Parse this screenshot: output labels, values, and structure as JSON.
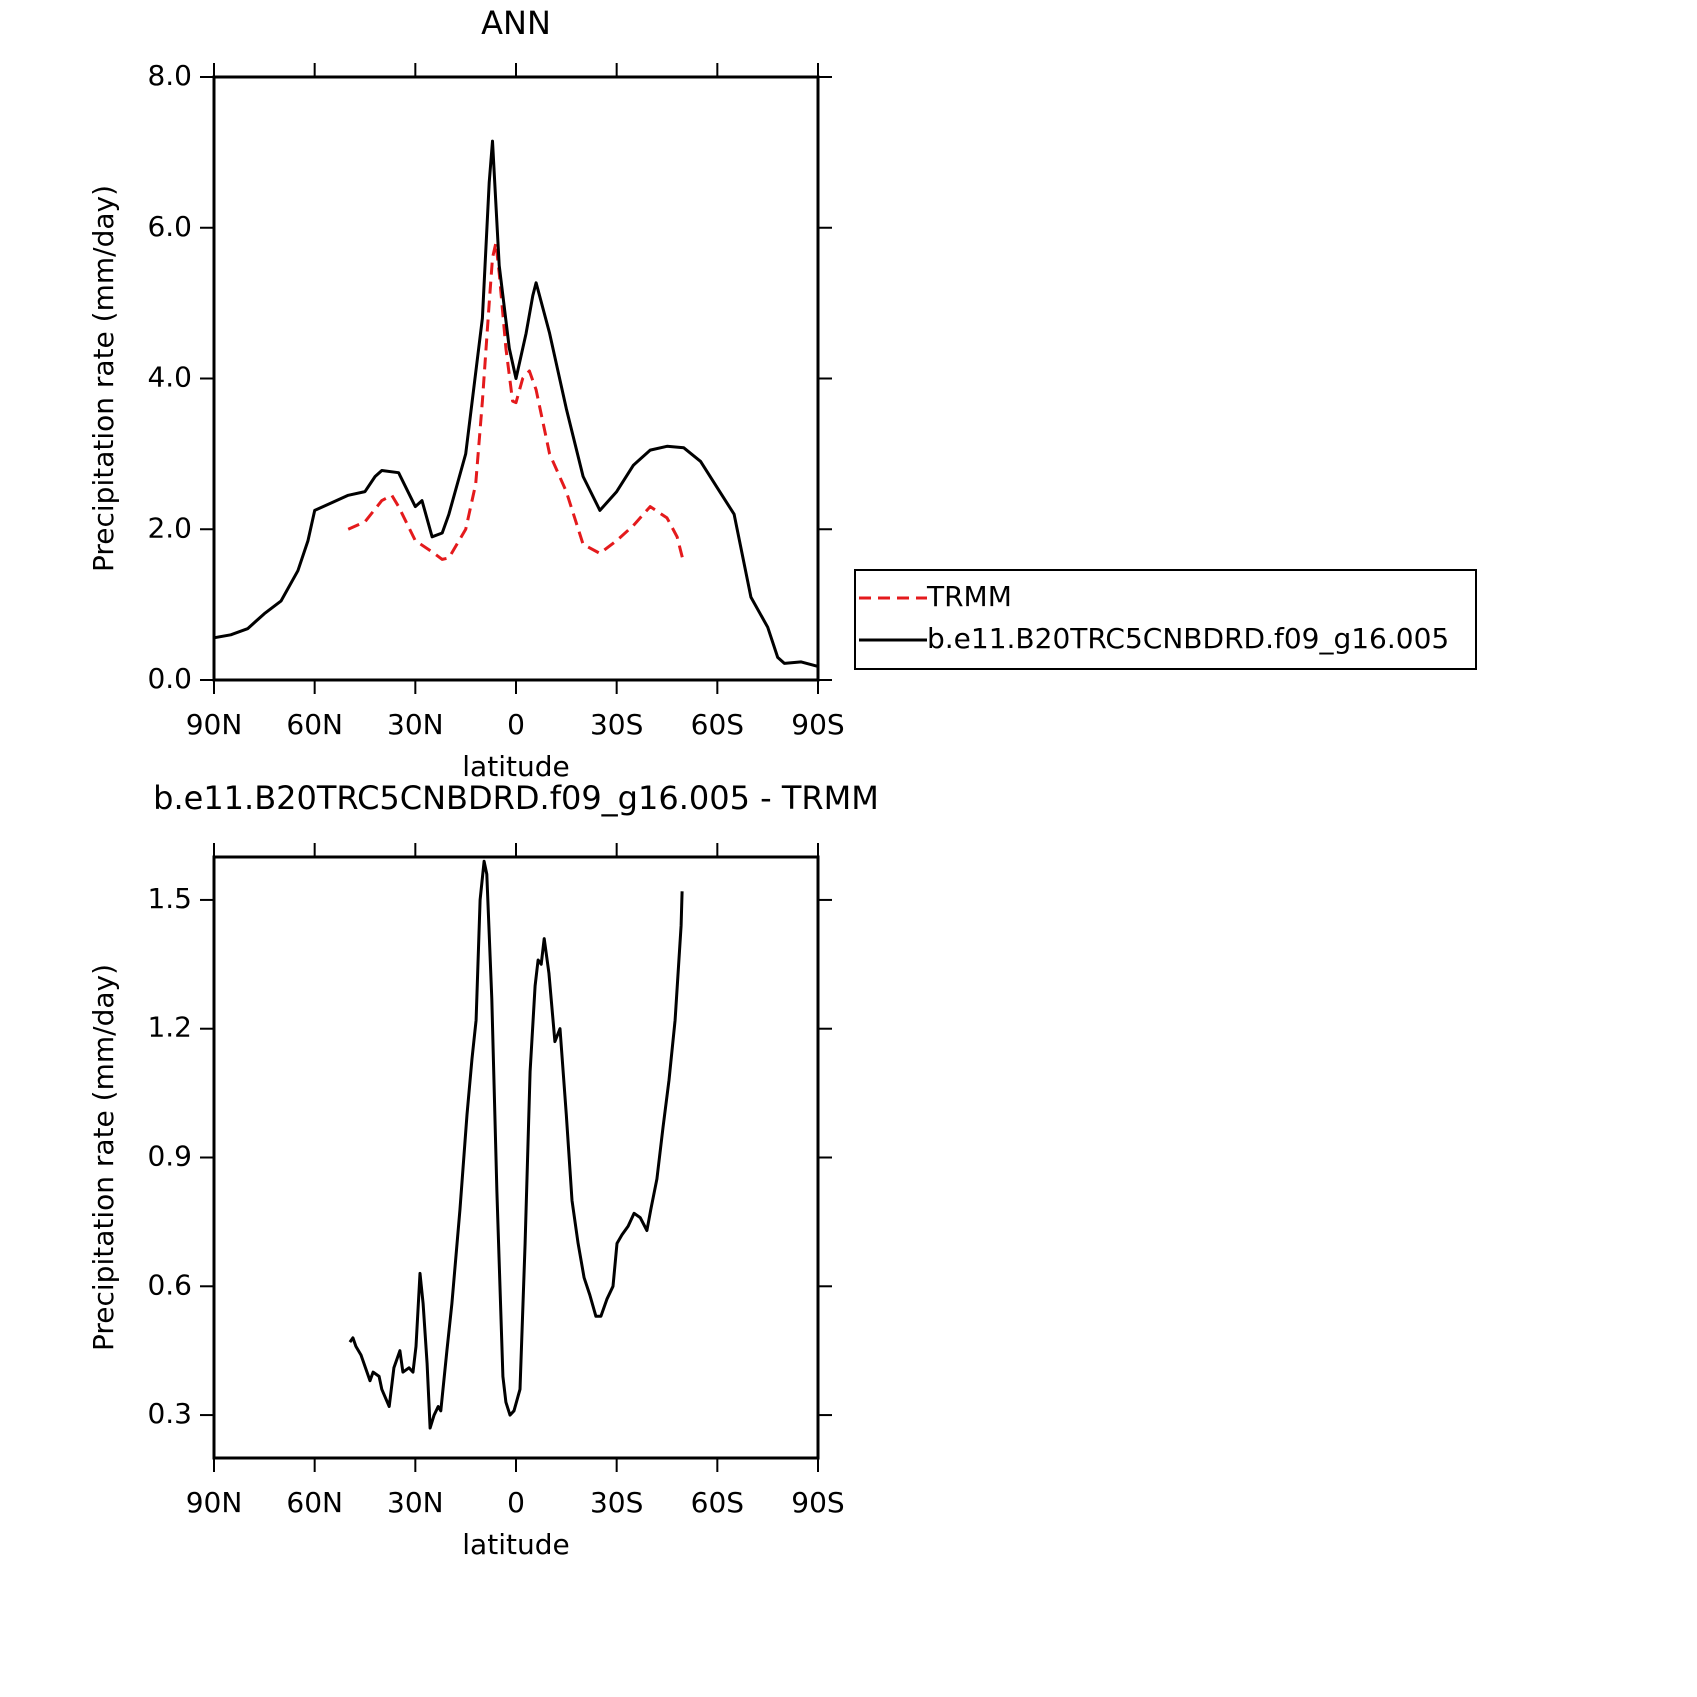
{
  "chart_data": [
    {
      "type": "line",
      "title": "ANN",
      "xlabel": "latitude",
      "ylabel": "Precipitation rate (mm/day)",
      "xlim": [
        90,
        -90
      ],
      "ylim": [
        0,
        8
      ],
      "xticks": [
        {
          "value": 90,
          "label": "90N"
        },
        {
          "value": 60,
          "label": "60N"
        },
        {
          "value": 30,
          "label": "30N"
        },
        0,
        {
          "value": -30,
          "label": "30S"
        },
        {
          "value": -60,
          "label": "60S"
        },
        {
          "value": -90,
          "label": "90S"
        }
      ],
      "yticks": [
        {
          "value": 0,
          "label": "0.0"
        },
        {
          "value": 2,
          "label": "2.0"
        },
        {
          "value": 4,
          "label": "4.0"
        },
        {
          "value": 6,
          "label": "6.0"
        },
        {
          "value": 8,
          "label": "8.0"
        }
      ],
      "legend": "right",
      "series": [
        {
          "name": "TRMM",
          "color": "#e41a1c",
          "dash": true,
          "x": [
            50,
            45,
            40,
            37,
            35,
            30,
            25,
            22,
            20,
            15,
            12,
            10,
            8,
            7,
            6,
            5,
            3,
            1,
            0,
            -2,
            -4,
            -6,
            -10,
            -15,
            -20,
            -25,
            -30,
            -35,
            -40,
            -45,
            -48,
            -50
          ],
          "values": [
            2.0,
            2.1,
            2.38,
            2.45,
            2.3,
            1.85,
            1.7,
            1.6,
            1.62,
            2.0,
            2.6,
            3.7,
            5.0,
            5.6,
            5.8,
            5.4,
            4.4,
            3.7,
            3.68,
            4.0,
            4.1,
            3.85,
            3.0,
            2.5,
            1.8,
            1.68,
            1.85,
            2.05,
            2.3,
            2.15,
            1.9,
            1.55
          ]
        },
        {
          "name": "b.e11.B20TRC5CNBDRD.f09_g16.005",
          "color": "#000000",
          "dash": false,
          "x": [
            90,
            85,
            80,
            75,
            70,
            65,
            62,
            60,
            55,
            50,
            45,
            42,
            40,
            35,
            30,
            28,
            25,
            22,
            20,
            15,
            10,
            8,
            7,
            5,
            2,
            0,
            -3,
            -5,
            -6,
            -10,
            -15,
            -20,
            -25,
            -30,
            -35,
            -40,
            -45,
            -50,
            -55,
            -60,
            -65,
            -70,
            -75,
            -78,
            -80,
            -85,
            -90
          ],
          "values": [
            0.56,
            0.6,
            0.68,
            0.88,
            1.05,
            1.45,
            1.85,
            2.25,
            2.35,
            2.45,
            2.5,
            2.7,
            2.78,
            2.75,
            2.3,
            2.38,
            1.9,
            1.95,
            2.2,
            3.0,
            4.8,
            6.6,
            7.15,
            5.5,
            4.4,
            4.0,
            4.6,
            5.1,
            5.27,
            4.6,
            3.6,
            2.7,
            2.25,
            2.5,
            2.85,
            3.05,
            3.1,
            3.08,
            2.9,
            2.55,
            2.2,
            1.1,
            0.7,
            0.3,
            0.22,
            0.24,
            0.18
          ]
        }
      ]
    },
    {
      "type": "line",
      "title": "b.e11.B20TRC5CNBDRD.f09_g16.005 - TRMM",
      "xlabel": "latitude",
      "ylabel": "Precipitation rate (mm/day)",
      "xlim": [
        90,
        -90
      ],
      "ylim": [
        0.2,
        1.6
      ],
      "xticks": [
        {
          "value": 90,
          "label": "90N"
        },
        {
          "value": 60,
          "label": "60N"
        },
        {
          "value": 30,
          "label": "30N"
        },
        0,
        {
          "value": -30,
          "label": "30S"
        },
        {
          "value": -60,
          "label": "60S"
        },
        {
          "value": -90,
          "label": "90S"
        }
      ],
      "yticks": [
        0.3,
        0.6,
        0.9,
        1.2,
        1.5
      ],
      "series": [
        {
          "color": "#000000",
          "dash": false,
          "x": [
            49.5,
            48.6,
            47.7,
            46.2,
            43.5,
            42.6,
            40.8,
            40,
            37.8,
            36.4,
            34.6,
            33.7,
            31.9,
            30.7,
            29.8,
            28.6,
            27.7,
            26.5,
            25.6,
            24.4,
            23.2,
            22.4,
            20.6,
            19.1,
            16.7,
            14.6,
            13.1,
            11.9,
            10.7,
            9.5,
            8.7,
            7.2,
            5.7,
            3.9,
            3.0,
            1.8,
            0.6,
            -1.2,
            -2.7,
            -4.2,
            -5.7,
            -6.6,
            -7.5,
            -8.4,
            -9.8,
            -11.6,
            -13.1,
            -15,
            -16.7,
            -18.5,
            -20.3,
            -22,
            -23.8,
            -25.3,
            -27.1,
            -28.9,
            -30.1,
            -31.6,
            -33.4,
            -35.2,
            -37,
            -39,
            -40.2,
            -42,
            -43.8,
            -45.6,
            -47.4,
            -49.2,
            -49.5
          ],
          "values": [
            0.47,
            0.48,
            0.46,
            0.44,
            0.38,
            0.4,
            0.39,
            0.36,
            0.32,
            0.41,
            0.45,
            0.4,
            0.41,
            0.4,
            0.46,
            0.63,
            0.56,
            0.42,
            0.27,
            0.3,
            0.32,
            0.31,
            0.45,
            0.56,
            0.78,
            1.0,
            1.13,
            1.22,
            1.5,
            1.59,
            1.56,
            1.27,
            0.82,
            0.39,
            0.33,
            0.3,
            0.31,
            0.36,
            0.7,
            1.1,
            1.3,
            1.36,
            1.35,
            1.41,
            1.33,
            1.17,
            1.2,
            1.0,
            0.8,
            0.7,
            0.62,
            0.58,
            0.53,
            0.53,
            0.57,
            0.6,
            0.7,
            0.72,
            0.74,
            0.77,
            0.76,
            0.73,
            0.78,
            0.85,
            0.97,
            1.08,
            1.22,
            1.44,
            1.52
          ]
        }
      ]
    }
  ]
}
